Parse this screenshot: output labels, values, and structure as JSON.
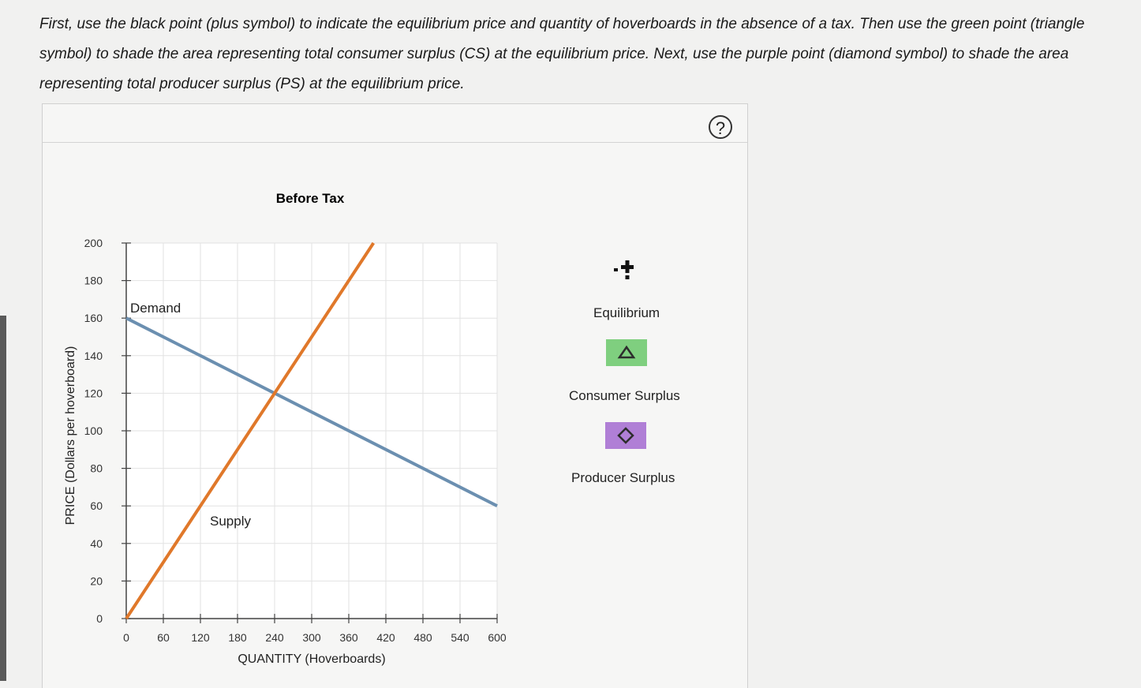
{
  "instructions": "First, use the black point (plus symbol) to indicate the equilibrium price and quantity of hoverboards in the absence of a tax. Then use the green point (triangle symbol) to shade the area representing total consumer surplus (CS) at the equilibrium price. Next, use the purple point (diamond symbol) to shade the area representing total producer surplus (PS) at the equilibrium price.",
  "help_symbol": "?",
  "chart_data": {
    "type": "line",
    "title": "Before Tax",
    "xlabel": "QUANTITY (Hoverboards)",
    "ylabel": "PRICE (Dollars per hoverboard)",
    "xlim": [
      0,
      600
    ],
    "ylim": [
      0,
      200
    ],
    "x_ticks": [
      0,
      60,
      120,
      180,
      240,
      300,
      360,
      420,
      480,
      540,
      600
    ],
    "y_ticks": [
      0,
      20,
      40,
      60,
      80,
      100,
      120,
      140,
      160,
      180,
      200
    ],
    "grid": true,
    "series": [
      {
        "name": "Demand",
        "color": "#6b8fb0",
        "points": [
          [
            0,
            160
          ],
          [
            600,
            60
          ]
        ]
      },
      {
        "name": "Supply",
        "color": "#e0782a",
        "points": [
          [
            0,
            0
          ],
          [
            400,
            200
          ]
        ]
      }
    ]
  },
  "palette": [
    {
      "label": "Equilibrium",
      "icon": "plus-icon",
      "color": "#111111"
    },
    {
      "label": "Consumer Surplus",
      "icon": "triangle-icon",
      "color": "#7fcf7f"
    },
    {
      "label": "Producer Surplus",
      "icon": "diamond-icon",
      "color": "#b07fd6"
    }
  ]
}
